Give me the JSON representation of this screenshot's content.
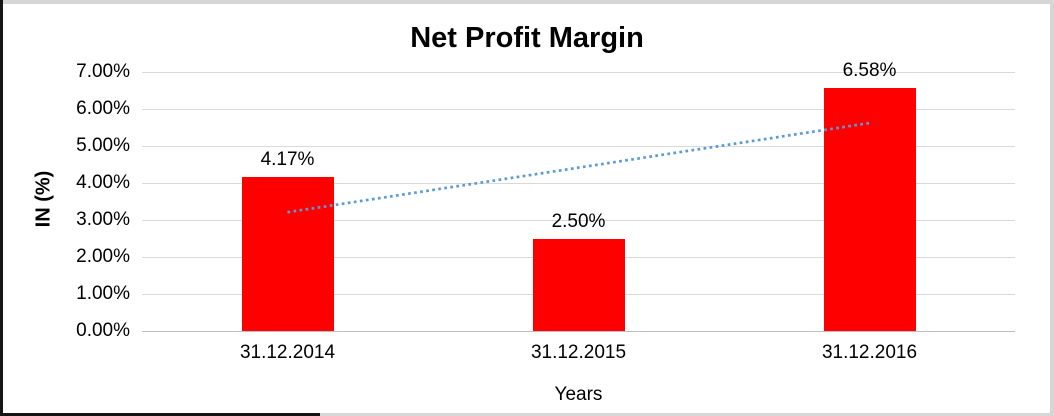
{
  "chart_data": {
    "type": "bar",
    "title": "Net Profit Margin",
    "categories": [
      "31.12.2014",
      "31.12.2015",
      "31.12.2016"
    ],
    "values": [
      4.17,
      2.5,
      6.58
    ],
    "data_labels": [
      "4.17%",
      "2.50%",
      "6.58%"
    ],
    "xlabel": "Years",
    "ylabel": "IN (%)",
    "ylim": [
      0,
      7
    ],
    "ytick_step": 1,
    "ytick_labels": [
      "0.00%",
      "1.00%",
      "2.00%",
      "3.00%",
      "4.00%",
      "5.00%",
      "6.00%",
      "7.00%"
    ],
    "grid": true,
    "legend": "none",
    "colors": {
      "bar": "#FF0000",
      "gridline": "#D9D9D9",
      "baseline": "#BFBFBF",
      "trendline": "#5B9BD5",
      "text": "#000000"
    },
    "trendline": {
      "style": "dotted",
      "name": "linear-trend",
      "points": [
        {
          "x": 0,
          "y": 3.21
        },
        {
          "x": 2,
          "y": 5.62
        }
      ]
    }
  }
}
